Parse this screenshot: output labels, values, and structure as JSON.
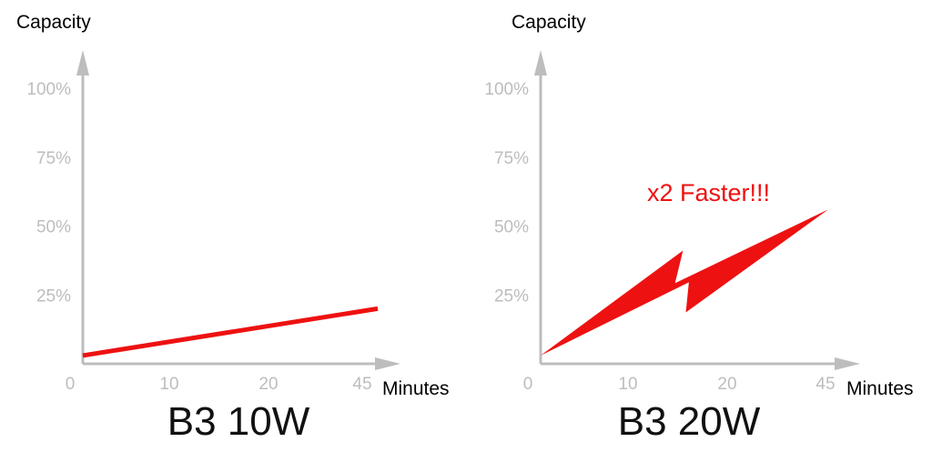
{
  "chart_data": [
    {
      "type": "line",
      "title": "B3 10W",
      "ylabel": "Capacity",
      "xlabel": "Minutes",
      "x_tick_labels": [
        "0",
        "10",
        "20",
        "45"
      ],
      "y_tick_labels": [
        "25%",
        "50%",
        "75%",
        "100%"
      ],
      "xlim": [
        0,
        45
      ],
      "ylim": [
        0,
        100
      ],
      "grid": false,
      "series": [
        {
          "x": [
            0,
            45
          ],
          "values": [
            3,
            20
          ],
          "color": "#ee1111"
        }
      ],
      "annotation": ""
    },
    {
      "type": "line",
      "title": "B3 20W",
      "ylabel": "Capacity",
      "xlabel": "Minutes",
      "x_tick_labels": [
        "0",
        "10",
        "20",
        "45"
      ],
      "y_tick_labels": [
        "25%",
        "50%",
        "75%",
        "100%"
      ],
      "xlim": [
        0,
        45
      ],
      "ylim": [
        0,
        100
      ],
      "grid": false,
      "series": [
        {
          "x": [
            0,
            45
          ],
          "values": [
            3,
            56
          ],
          "style": "lightning-bolt",
          "color": "#ee1111"
        }
      ],
      "annotation": "x2 Faster!!!",
      "annotation_color": "#ee1111"
    }
  ],
  "colors": {
    "axis": "#bdbdbd",
    "tick_text": "#bdbdbd",
    "series": "#ee1111",
    "title": "#111111"
  }
}
